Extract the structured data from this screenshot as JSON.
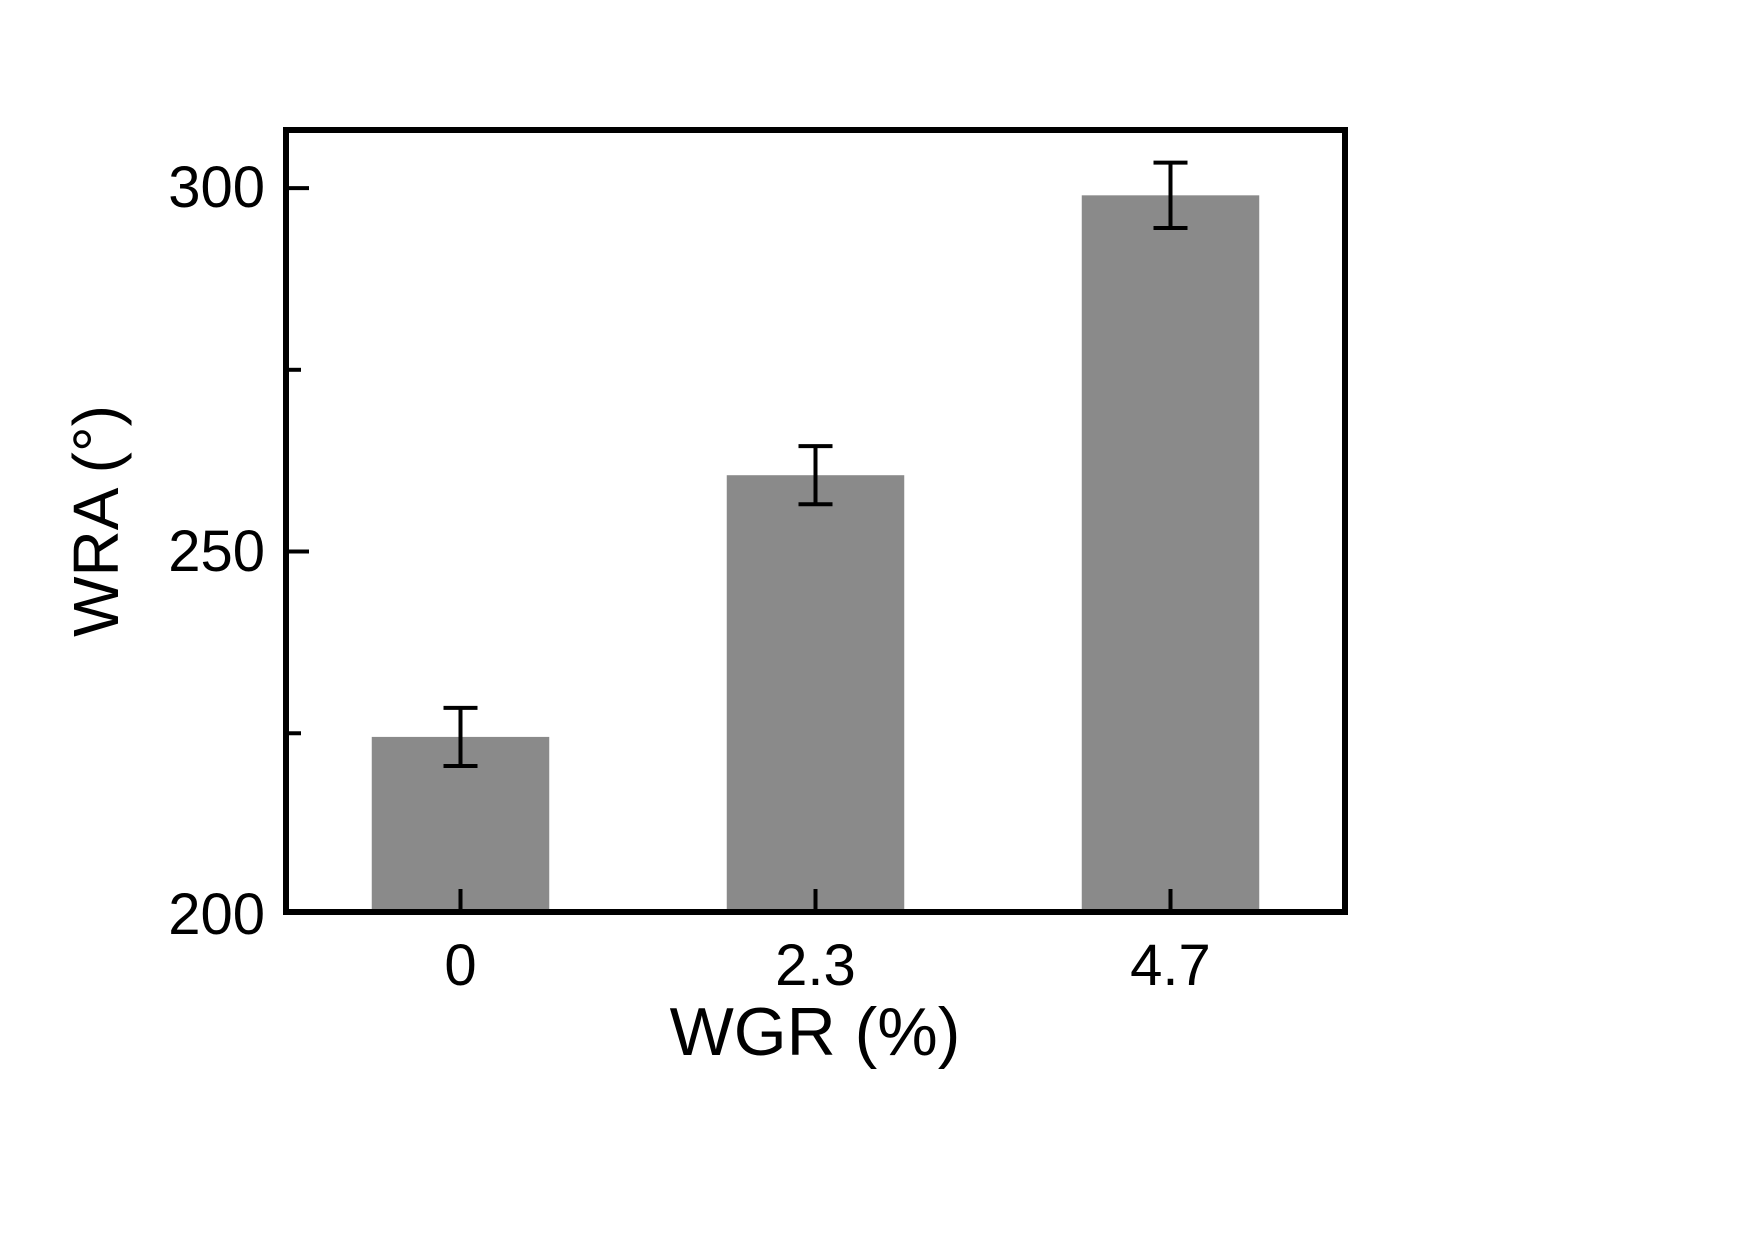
{
  "figure": {
    "background": "#ffffff",
    "ylabel": "WRA (°)",
    "xlabel": "WGR (%)"
  },
  "chart_data": {
    "type": "bar",
    "title": "",
    "categories": [
      "0",
      "2.3",
      "4.7"
    ],
    "values": [
      224.5,
      260.5,
      299
    ],
    "errors": [
      4,
      4,
      4.5
    ],
    "xlabel": "WGR (%)",
    "ylabel": "WRA (°)",
    "ylim": [
      200,
      308.4
    ],
    "yticks_major": [
      200,
      250,
      300
    ],
    "yticks_minor": [
      225,
      275
    ],
    "grid": false,
    "legend": null,
    "bar_color": "#8a8a8a",
    "axis_color": "#000000",
    "error_color": "#000000"
  }
}
